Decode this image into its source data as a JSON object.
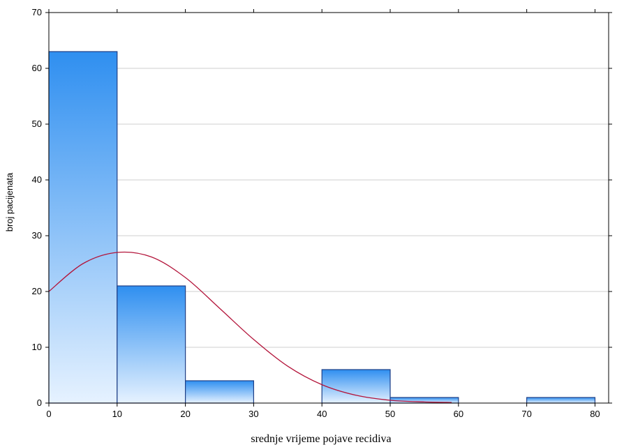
{
  "chart_data": {
    "type": "bar",
    "title": "",
    "xlabel": "srednje vrijeme pojave recidiva",
    "ylabel": "broj pacijenata",
    "xlim": [
      0,
      80
    ],
    "ylim": [
      0,
      70
    ],
    "x_ticks": [
      0,
      10,
      20,
      30,
      40,
      50,
      60,
      70,
      80
    ],
    "y_ticks": [
      0,
      10,
      20,
      30,
      40,
      50,
      60,
      70
    ],
    "bins": [
      {
        "start": 0,
        "end": 10,
        "count": 63
      },
      {
        "start": 10,
        "end": 20,
        "count": 21
      },
      {
        "start": 20,
        "end": 30,
        "count": 4
      },
      {
        "start": 30,
        "end": 40,
        "count": 0
      },
      {
        "start": 40,
        "end": 50,
        "count": 6
      },
      {
        "start": 50,
        "end": 60,
        "count": 1
      },
      {
        "start": 60,
        "end": 70,
        "count": 0
      },
      {
        "start": 70,
        "end": 80,
        "count": 1
      }
    ],
    "fit_curve": {
      "type": "normal",
      "x": [
        0,
        5,
        10,
        15,
        20,
        25,
        30,
        35,
        40,
        45,
        50,
        55,
        59
      ],
      "y": [
        20.0,
        25.0,
        27.0,
        26.2,
        22.5,
        17.0,
        11.4,
        6.6,
        3.3,
        1.4,
        0.5,
        0.2,
        0.1
      ]
    },
    "grid": {
      "horizontal": true,
      "vertical": false
    },
    "colors": {
      "bar_fill_top": "#2f8ff0",
      "bar_fill_bottom": "#e6f2ff",
      "bar_stroke": "#1f3f86",
      "curve": "#b3143a",
      "grid": "#cfcfcf",
      "axis": "#000000"
    }
  }
}
